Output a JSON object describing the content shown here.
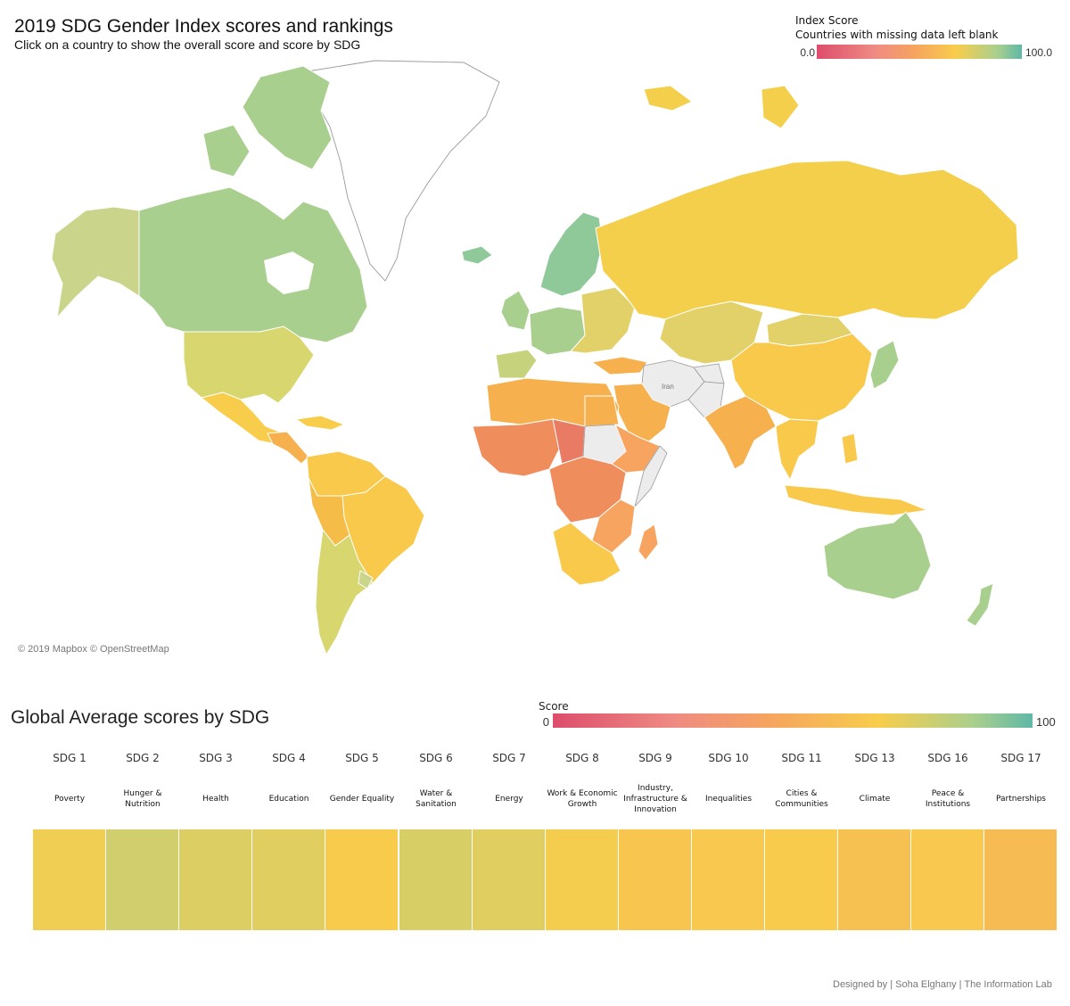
{
  "map": {
    "title": "2019 SDG Gender Index scores and rankings",
    "subtitle": "Click on a country to show the overall score and score by SDG",
    "legend": {
      "title": "Index Score",
      "note": "Countries with missing data left blank",
      "min": "0.0",
      "max": "100.0"
    },
    "labels": {
      "iran": "Iran"
    },
    "attribution": "© 2019 Mapbox © OpenStreetMap"
  },
  "colors": {
    "no_data": "#ececec",
    "low": "#dd4d6c",
    "mid_low": "#f6a45f",
    "mid": "#f8cd4c",
    "high": "#a9cf8e",
    "top": "#5fb8a6"
  },
  "heatmap": {
    "title": "Global Average scores by SDG",
    "legend": {
      "title": "Score",
      "min": "0",
      "max": "100"
    }
  },
  "chart_data": [
    {
      "type": "heatmap",
      "title": "Global Average scores by SDG",
      "scale": [
        0,
        100
      ],
      "categories": [
        "SDG 1",
        "SDG 2",
        "SDG 3",
        "SDG 4",
        "SDG 5",
        "SDG 6",
        "SDG 7",
        "SDG 8",
        "SDG 9",
        "SDG 10",
        "SDG 11",
        "SDG 13",
        "SDG 16",
        "SDG 17"
      ],
      "names": [
        "Poverty",
        "Hunger &\nNutrition",
        "Health",
        "Education",
        "Gender Equality",
        "Water &\nSanitation",
        "Energy",
        "Work & Economic\nGrowth",
        "Industry,\nInfrastructure &\nInnovation",
        "Inequalities",
        "Cities &\nCommunities",
        "Climate",
        "Peace &\nInstitutions",
        "Partnerships"
      ],
      "values": [
        70,
        78,
        75,
        74,
        67,
        76,
        74,
        69,
        64,
        66,
        67,
        61,
        66,
        58
      ]
    }
  ],
  "footer": {
    "credit": "Designed by | Soha Elghany | The Information Lab"
  }
}
